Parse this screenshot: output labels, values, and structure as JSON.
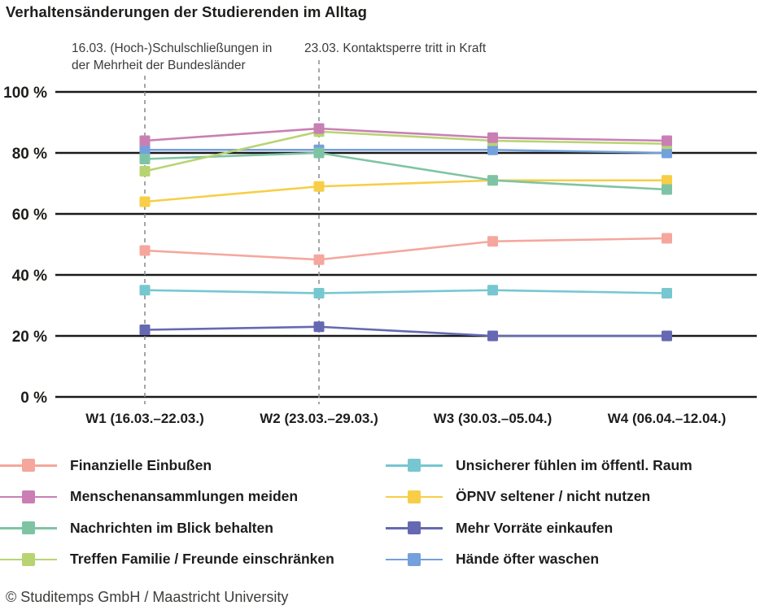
{
  "title": "Verhaltensänderungen der Studierenden im Alltag",
  "footer": "© Studitemps GmbH / Maastricht University",
  "annotations": [
    {
      "line1": "16.03. (Hoch-)Schulschließungen in",
      "line2": "der Mehrheit der Bundesländer"
    },
    {
      "line1": "23.03. Kontaktsperre tritt in Kraft",
      "line2": ""
    }
  ],
  "chart_data": {
    "type": "line",
    "title": "Verhaltensänderungen der Studierenden im Alltag",
    "categories": [
      "W1 (16.03.–22.03.)",
      "W2 (23.03.–29.03.)",
      "W3 (30.03.–05.04.)",
      "W4 (06.04.–12.04.)"
    ],
    "ylim": [
      0,
      100
    ],
    "yticks": [
      0,
      20,
      40,
      60,
      80,
      100
    ],
    "ytick_labels": [
      "0 %",
      "20 %",
      "40 %",
      "60 %",
      "80 %",
      "100 %"
    ],
    "grid": "horizontal-solid-black",
    "legend_position": "bottom-two-columns",
    "event_lines": [
      {
        "category_index": 0,
        "label": "16.03. (Hoch-)Schulschließungen in der Mehrheit der Bundesländer"
      },
      {
        "category_index": 1,
        "label": "23.03. Kontaktsperre tritt in Kraft"
      }
    ],
    "series": [
      {
        "key": "oepnv",
        "name": "ÖPNV seltener / nicht nutzen",
        "color": "#F7CE46",
        "values": [
          64,
          69,
          71,
          71
        ]
      },
      {
        "key": "haende",
        "name": "Hände öfter waschen",
        "color": "#74A0DC",
        "values": [
          81,
          81,
          81,
          80
        ]
      },
      {
        "key": "nachrichten",
        "name": "Nachrichten im Blick behalten",
        "color": "#7EC4A4",
        "values": [
          78,
          80,
          71,
          68
        ]
      },
      {
        "key": "treffen",
        "name": "Treffen Familie / Freunde einschränken",
        "color": "#B8D472",
        "values": [
          74,
          87,
          84,
          83
        ]
      },
      {
        "key": "menschen",
        "name": "Menschenansammlungen meiden",
        "color": "#C97FB4",
        "values": [
          84,
          88,
          85,
          84
        ]
      },
      {
        "key": "finanzielle",
        "name": "Finanzielle Einbußen",
        "color": "#F5A79D",
        "values": [
          48,
          45,
          51,
          52
        ]
      },
      {
        "key": "unsicherer",
        "name": "Unsicherer fühlen im öffentl. Raum",
        "color": "#76C7D0",
        "values": [
          35,
          34,
          35,
          34
        ]
      },
      {
        "key": "vorraete",
        "name": "Mehr Vorräte einkaufen",
        "color": "#6569B2",
        "values": [
          22,
          23,
          20,
          20
        ]
      }
    ]
  },
  "legend": {
    "left": [
      {
        "series": "finanzielle",
        "label": "Finanzielle Einbußen"
      },
      {
        "series": "menschen",
        "label": "Menschenansammlungen meiden"
      },
      {
        "series": "nachrichten",
        "label": "Nachrichten im Blick behalten"
      },
      {
        "series": "treffen",
        "label": "Treffen Familie / Freunde einschränken"
      }
    ],
    "right": [
      {
        "series": "unsicherer",
        "label": "Unsicherer fühlen im öffentl. Raum"
      },
      {
        "series": "oepnv",
        "label": "ÖPNV seltener / nicht nutzen"
      },
      {
        "series": "vorraete",
        "label": "Mehr Vorräte einkaufen"
      },
      {
        "series": "haende",
        "label": "Hände öfter waschen"
      }
    ]
  }
}
